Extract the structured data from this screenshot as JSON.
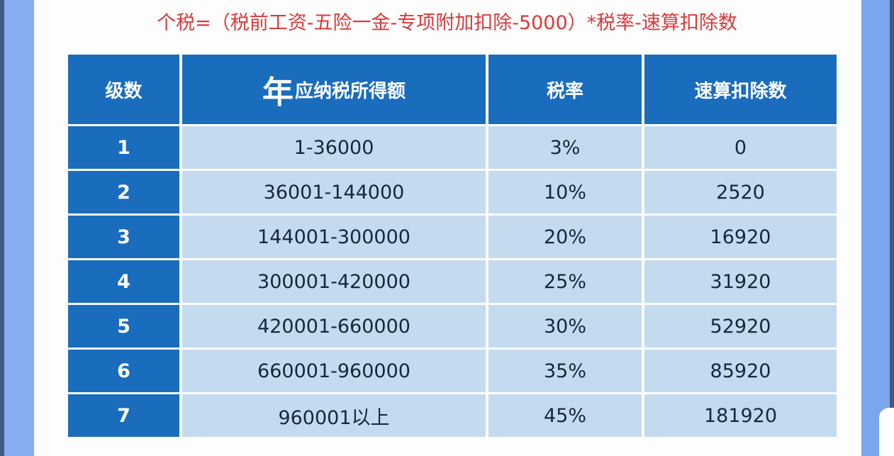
{
  "formula": "个税=（税前工资-五险一金-专项附加扣除-5000）*税率-速算扣除数",
  "header": {
    "level": "级数",
    "income_big": "年",
    "income_rest": "应纳税所得额",
    "rate": "税率",
    "deduction": "速算扣除数"
  },
  "rows": [
    {
      "level": "1",
      "range": "1-36000",
      "rate": "3%",
      "deduction": "0"
    },
    {
      "level": "2",
      "range": "36001-144000",
      "rate": "10%",
      "deduction": "2520"
    },
    {
      "level": "3",
      "range": "144001-300000",
      "rate": "20%",
      "deduction": "16920"
    },
    {
      "level": "4",
      "range": "300001-420000",
      "rate": "25%",
      "deduction": "31920"
    },
    {
      "level": "5",
      "range": "420001-660000",
      "rate": "30%",
      "deduction": "52920"
    },
    {
      "level": "6",
      "range": "660001-960000",
      "rate": "35%",
      "deduction": "85920"
    },
    {
      "level": "7",
      "range": "960001以上",
      "rate": "45%",
      "deduction": "181920"
    }
  ]
}
